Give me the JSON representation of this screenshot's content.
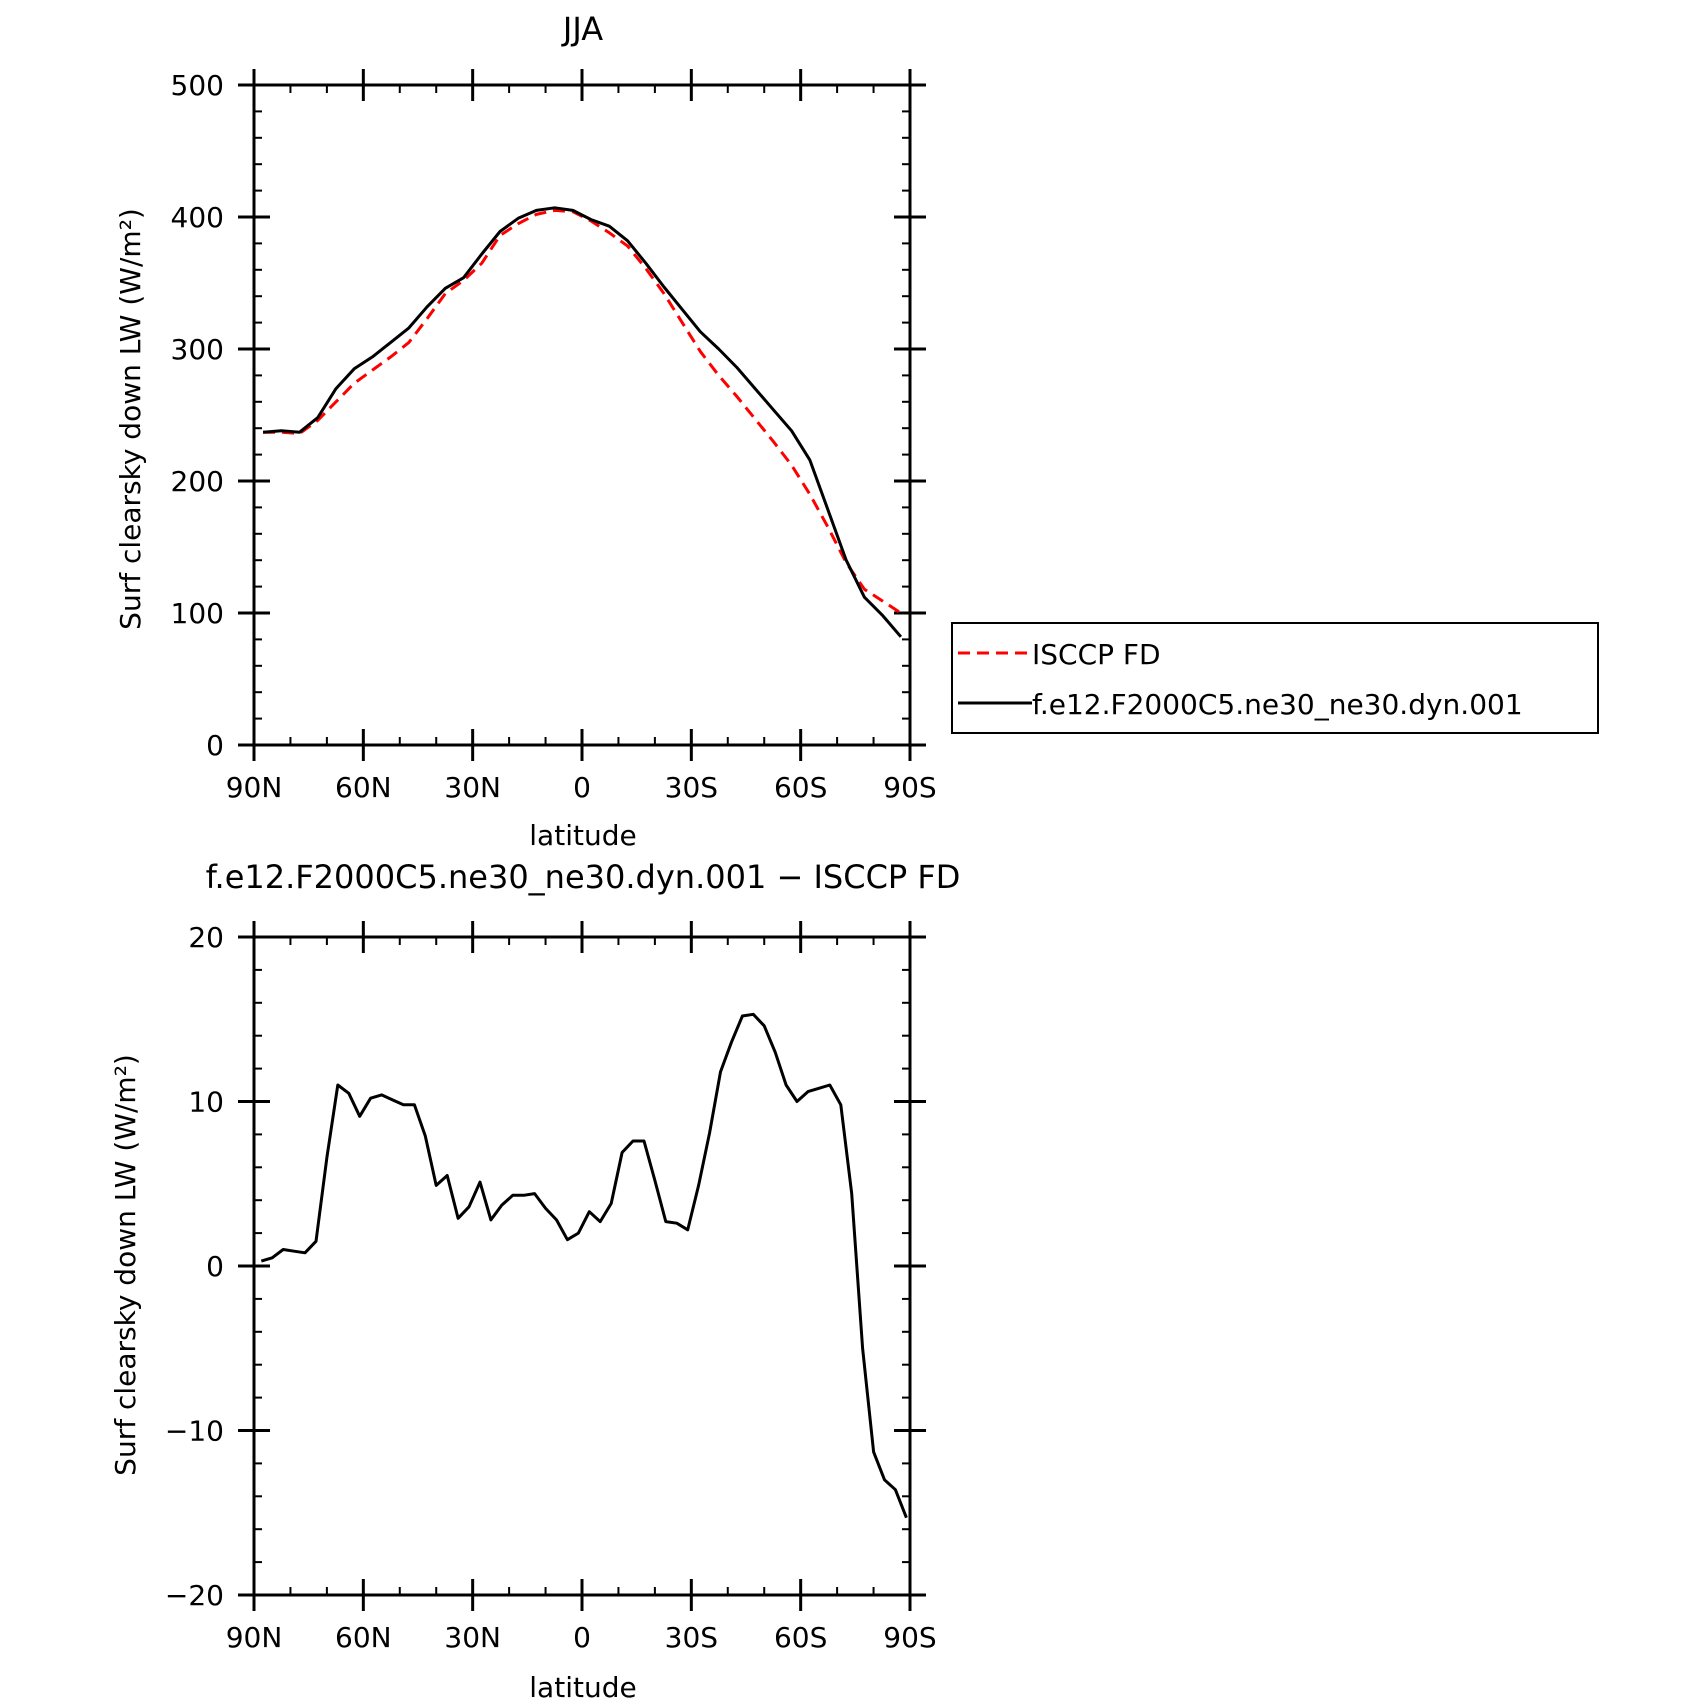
{
  "chart_data": [
    {
      "type": "line",
      "title": "JJA",
      "xlabel": "latitude",
      "ylabel": "Surf clearsky down LW (W/m²)",
      "xlim": [
        90,
        -90
      ],
      "ylim": [
        0,
        500
      ],
      "x_ticks": [
        90,
        60,
        30,
        0,
        -30,
        -60,
        -90
      ],
      "x_tick_labels": [
        "90N",
        "60N",
        "30N",
        "0",
        "30S",
        "60S",
        "90S"
      ],
      "y_ticks": [
        0,
        100,
        200,
        300,
        400,
        500
      ],
      "y_tick_labels": [
        "0",
        "100",
        "200",
        "300",
        "400",
        "500"
      ],
      "legend": {
        "placement": "right",
        "entries": [
          "ISCCP FD",
          "f.e12.F2000C5.ne30_ne30.dyn.001"
        ]
      },
      "colors": {
        "ISCCP FD": "#ff0000",
        "f.e12.F2000C5.ne30_ne30.dyn.001": "#000000"
      },
      "series": [
        {
          "name": "ISCCP FD",
          "style": "dashed",
          "x": [
            87.5,
            82.5,
            77.5,
            72.5,
            67.5,
            62.5,
            57.5,
            52.5,
            47.5,
            42.5,
            37.5,
            32.5,
            27.5,
            22.5,
            17.5,
            12.5,
            7.5,
            2.5,
            -2.5,
            -7.5,
            -12.5,
            -17.5,
            -22.5,
            -27.5,
            -32.5,
            -37.5,
            -42.5,
            -47.5,
            -52.5,
            -57.5,
            -62.5,
            -67.5,
            -72.5,
            -77.5,
            -82.5,
            -87.5
          ],
          "values": [
            237,
            237,
            236,
            246,
            260,
            274,
            284,
            294,
            305,
            323,
            342,
            352,
            365,
            386,
            395,
            402,
            405,
            404,
            397,
            388,
            378,
            361,
            342,
            320,
            298,
            280,
            264,
            247,
            230,
            212,
            190,
            165,
            138,
            118,
            109,
            100
          ]
        },
        {
          "name": "f.e12.F2000C5.ne30_ne30.dyn.001",
          "style": "solid",
          "x": [
            87.5,
            82.5,
            77.5,
            72.5,
            67.5,
            62.5,
            57.5,
            52.5,
            47.5,
            42.5,
            37.5,
            32.5,
            27.5,
            22.5,
            17.5,
            12.5,
            7.5,
            2.5,
            -2.5,
            -7.5,
            -12.5,
            -17.5,
            -22.5,
            -27.5,
            -32.5,
            -37.5,
            -42.5,
            -47.5,
            -52.5,
            -57.5,
            -62.5,
            -67.5,
            -72.5,
            -77.5,
            -82.5,
            -87.5
          ],
          "values": [
            237,
            238,
            237,
            248,
            270,
            285,
            294,
            305,
            316,
            332,
            346,
            354,
            372,
            389,
            399,
            405,
            407,
            405,
            398,
            393,
            382,
            365,
            347,
            330,
            313,
            300,
            286,
            270,
            254,
            238,
            216,
            178,
            140,
            112,
            98,
            82
          ]
        }
      ]
    },
    {
      "type": "line",
      "title": "f.e12.F2000C5.ne30_ne30.dyn.001 − ISCCP FD",
      "xlabel": "latitude",
      "ylabel": "Surf clearsky down LW (W/m²)",
      "xlim": [
        90,
        -90
      ],
      "ylim": [
        -20,
        20
      ],
      "x_ticks": [
        90,
        60,
        30,
        0,
        -30,
        -60,
        -90
      ],
      "x_tick_labels": [
        "90N",
        "60N",
        "30N",
        "0",
        "30S",
        "60S",
        "90S"
      ],
      "y_ticks": [
        -20,
        -10,
        0,
        10,
        20
      ],
      "y_tick_labels": [
        "−20",
        "−10",
        "0",
        "10",
        "20"
      ],
      "series": [
        {
          "style": "solid",
          "x": [
            88,
            85,
            82,
            79,
            76,
            73,
            70,
            67,
            64,
            61,
            58,
            55,
            52,
            49,
            46,
            43,
            40,
            37,
            34,
            31,
            28,
            25,
            22,
            19,
            16,
            13,
            10,
            7,
            4,
            1,
            -2,
            -5,
            -8,
            -11,
            -14,
            -17,
            -20,
            -23,
            -26,
            -29,
            -32,
            -35,
            -38,
            -41,
            -44,
            -47,
            -50,
            -53,
            -56,
            -59,
            -62,
            -65,
            -68,
            -71,
            -74,
            -77,
            -80,
            -83,
            -86,
            -89
          ],
          "values": [
            0.3,
            0.5,
            1.0,
            0.9,
            0.8,
            1.5,
            6.6,
            11.0,
            10.5,
            9.1,
            10.2,
            10.4,
            10.1,
            9.8,
            9.8,
            7.9,
            4.9,
            5.5,
            2.9,
            3.6,
            5.1,
            2.8,
            3.7,
            4.3,
            4.3,
            4.4,
            3.5,
            2.8,
            1.6,
            2.0,
            3.3,
            2.7,
            3.8,
            6.9,
            7.6,
            7.6,
            5.2,
            2.7,
            2.6,
            2.2,
            4.9,
            8.1,
            11.8,
            13.6,
            15.2,
            15.3,
            14.6,
            13.0,
            11.0,
            10.0,
            10.6,
            10.8,
            11.0,
            9.8,
            4.4,
            -5.0,
            -11.3,
            -13.0,
            -13.6,
            -15.3
          ]
        }
      ]
    }
  ]
}
